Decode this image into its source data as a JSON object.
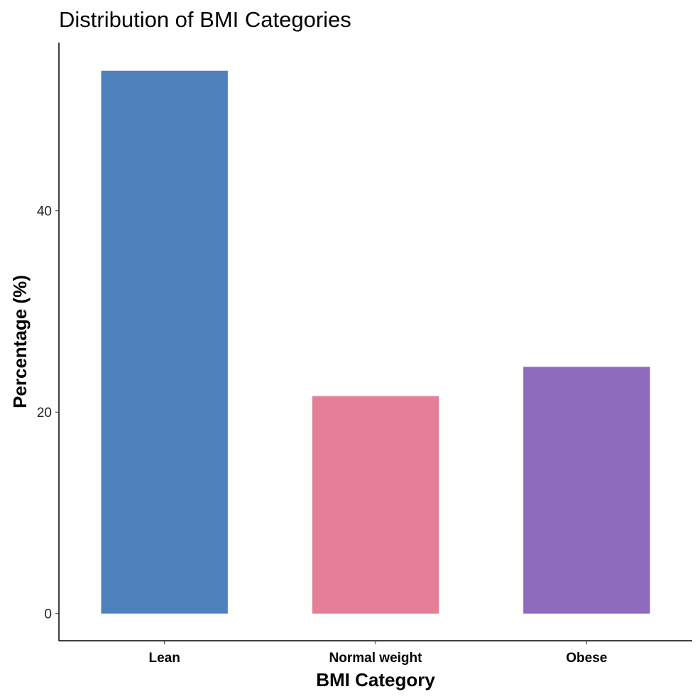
{
  "chart_data": {
    "type": "bar",
    "title": "Distribution of BMI Categories",
    "xlabel": "BMI Category",
    "ylabel": "Percentage (%)",
    "categories": [
      "Lean",
      "Normal weight",
      "Obese"
    ],
    "values": [
      53.9,
      21.6,
      24.5
    ],
    "colors": [
      "#4F81BD",
      "#E57E97",
      "#8E6BBD"
    ],
    "yticks": [
      0,
      20,
      40
    ],
    "ylim": [
      -2.7,
      56.7
    ],
    "grid": false,
    "legend": "none"
  }
}
